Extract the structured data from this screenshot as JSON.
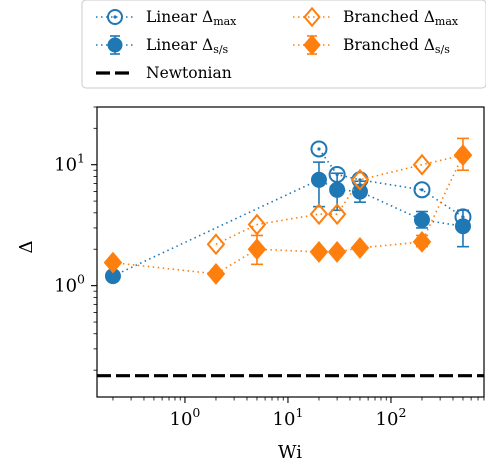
{
  "chart_data": {
    "type": "scatter",
    "title": "",
    "xlabel": "Wi",
    "ylabel": "Δ",
    "xscale": "log",
    "yscale": "log",
    "xlim": [
      0.14,
      800
    ],
    "ylim": [
      0.12,
      30
    ],
    "grid": false,
    "legend_position": "top",
    "x_ticks": [
      {
        "value": 1,
        "base": "10",
        "exp": "0"
      },
      {
        "value": 10,
        "base": "10",
        "exp": "1"
      },
      {
        "value": 100,
        "base": "10",
        "exp": "2"
      }
    ],
    "y_ticks": [
      {
        "value": 1,
        "base": "10",
        "exp": "0"
      },
      {
        "value": 10,
        "base": "10",
        "exp": "1"
      }
    ],
    "series": [
      {
        "name": "Linear Δmax",
        "label_main": "Linear Δ",
        "label_sub": "max",
        "color": "#1f77b4",
        "marker": "circle-dot-open",
        "line": "dotted",
        "points": [
          {
            "x": 20,
            "y": 13.5
          },
          {
            "x": 30,
            "y": 8.3
          },
          {
            "x": 50,
            "y": 7.5
          },
          {
            "x": 200,
            "y": 6.2
          },
          {
            "x": 500,
            "y": 3.7
          }
        ]
      },
      {
        "name": "Linear Δs/s",
        "label_main": "Linear Δ",
        "label_sub": "s/s",
        "color": "#1f77b4",
        "marker": "circle-filled",
        "line": "dotted",
        "points": [
          {
            "x": 0.2,
            "y": 1.2,
            "err": [
              1.2,
              1.2
            ]
          },
          {
            "x": 20,
            "y": 7.5,
            "err": [
              4.5,
              10.5
            ]
          },
          {
            "x": 30,
            "y": 6.2,
            "err": [
              4.2,
              8.5
            ]
          },
          {
            "x": 50,
            "y": 6.0,
            "err": [
              4.9,
              7.3
            ]
          },
          {
            "x": 200,
            "y": 3.5,
            "err": [
              3.0,
              4.1
            ]
          },
          {
            "x": 500,
            "y": 3.1,
            "err": [
              2.1,
              4.2
            ]
          }
        ]
      },
      {
        "name": "Branched Δmax",
        "label_main": "Branched Δ",
        "label_sub": "max",
        "color": "#ff7f0e",
        "marker": "diamond-open",
        "line": "dotted",
        "points": [
          {
            "x": 2,
            "y": 2.2
          },
          {
            "x": 5,
            "y": 3.2
          },
          {
            "x": 20,
            "y": 3.9
          },
          {
            "x": 30,
            "y": 3.9
          },
          {
            "x": 50,
            "y": 7.5
          },
          {
            "x": 200,
            "y": 10.0
          },
          {
            "x": 500,
            "y": 12.0
          }
        ]
      },
      {
        "name": "Branched Δs/s",
        "label_main": "Branched Δ",
        "label_sub": "s/s",
        "color": "#ff7f0e",
        "marker": "diamond-filled",
        "line": "dotted",
        "points": [
          {
            "x": 0.2,
            "y": 1.55,
            "err": [
              1.55,
              1.55
            ]
          },
          {
            "x": 2,
            "y": 1.25,
            "err": [
              1.25,
              1.25
            ]
          },
          {
            "x": 5,
            "y": 2.0,
            "err": [
              1.5,
              2.6
            ]
          },
          {
            "x": 20,
            "y": 1.9,
            "err": [
              1.9,
              1.9
            ]
          },
          {
            "x": 30,
            "y": 1.9,
            "err": [
              1.9,
              1.9
            ]
          },
          {
            "x": 50,
            "y": 2.05,
            "err": [
              2.05,
              2.05
            ]
          },
          {
            "x": 200,
            "y": 2.3,
            "err": [
              2.1,
              2.6
            ]
          },
          {
            "x": 500,
            "y": 12.0,
            "err": [
              9.0,
              16.5
            ]
          }
        ]
      },
      {
        "name": "Newtonian",
        "label_main": "Newtonian",
        "label_sub": "",
        "color": "#000000",
        "marker": "none",
        "line": "dashed",
        "points": [
          {
            "x": 0.14,
            "y": 0.18
          },
          {
            "x": 800,
            "y": 0.18
          }
        ]
      }
    ]
  }
}
